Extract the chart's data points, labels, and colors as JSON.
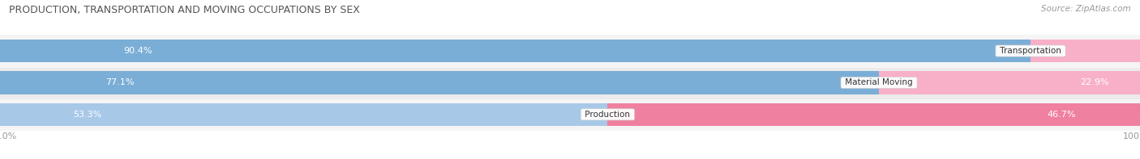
{
  "title": "PRODUCTION, TRANSPORTATION AND MOVING OCCUPATIONS BY SEX",
  "source_text": "Source: ZipAtlas.com",
  "categories": [
    "Transportation",
    "Material Moving",
    "Production"
  ],
  "male_values": [
    90.4,
    77.1,
    53.3
  ],
  "female_values": [
    9.6,
    22.9,
    46.7
  ],
  "male_color_top": "#7aaed6",
  "male_color_bottom": "#a8c8e8",
  "female_color_top": "#f080a0",
  "female_color_bottom": "#f8b0c8",
  "row_bg_even": "#ebebeb",
  "row_bg_odd": "#f5f5f5",
  "title_color": "#555555",
  "label_color": "#555555",
  "pct_inside_color": "white",
  "pct_outside_color": "#666666",
  "legend_male_color": "#7aaed6",
  "legend_female_color": "#f080a0",
  "figsize": [
    14.06,
    1.97
  ],
  "dpi": 100
}
